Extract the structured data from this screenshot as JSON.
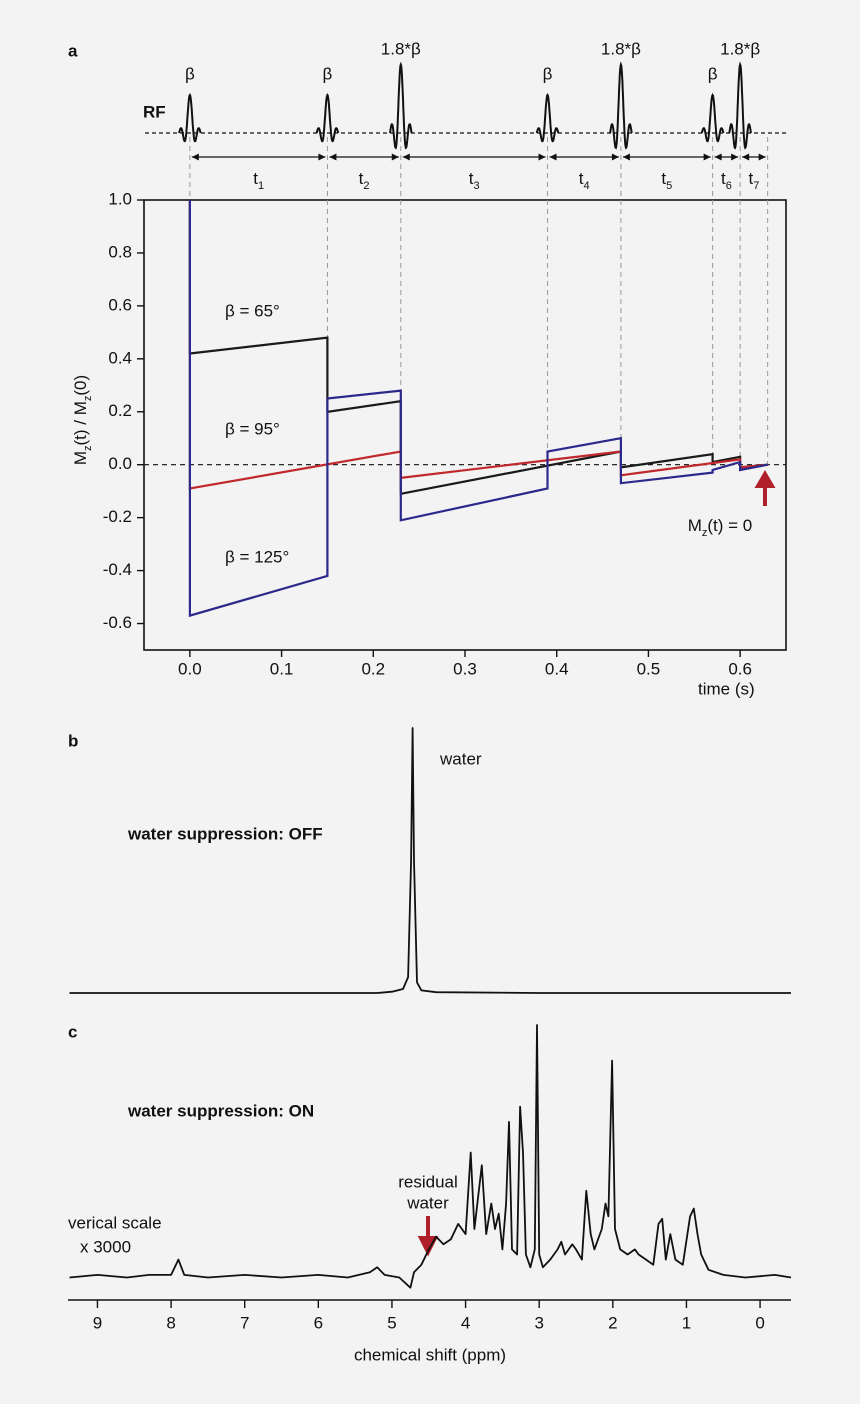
{
  "chart_data": [
    {
      "type": "line",
      "panel": "a",
      "ylabel": [
        {
          "text": "M"
        },
        {
          "text": "z",
          "sub": true
        },
        {
          "text": "(t) / M"
        },
        {
          "text": "z",
          "sub": true
        },
        {
          "text": "(0)"
        }
      ],
      "xlabel": "time (s)",
      "xlim": [
        -0.05,
        0.65
      ],
      "ylim": [
        -0.7,
        1.0
      ],
      "xticks": [
        {
          "value": 0,
          "label": "0.0"
        },
        0.1,
        0.2,
        0.3,
        0.4,
        0.5,
        0.6
      ],
      "yticks": [
        -0.6,
        -0.4,
        -0.2,
        {
          "value": 0,
          "label": "0.0"
        },
        0.2,
        0.4,
        0.6,
        0.8,
        {
          "value": 1,
          "label": "1.0"
        }
      ],
      "rf": {
        "label": "RF",
        "pulses": [
          {
            "t": 0,
            "label": "β"
          },
          {
            "t": 0.15,
            "label": "β"
          },
          {
            "t": 0.23,
            "label": "1.8*β"
          },
          {
            "t": 0.39,
            "label": "β"
          },
          {
            "t": 0.47,
            "label": "1.8*β"
          },
          {
            "t": 0.57,
            "label": "β"
          },
          {
            "t": 0.6,
            "label": "1.8*β"
          }
        ],
        "end": 0.63,
        "intervals": [
          {
            "text": "t",
            "sub": "1"
          },
          {
            "text": "t",
            "sub": "2"
          },
          {
            "text": "t",
            "sub": "3"
          },
          {
            "text": "t",
            "sub": "4"
          },
          {
            "text": "t",
            "sub": "5"
          },
          {
            "text": "t",
            "sub": "6"
          },
          {
            "text": "t",
            "sub": "7"
          }
        ]
      },
      "series": [
        {
          "name": "β = 65°",
          "color": "#1a1a1a",
          "x": [
            0,
            0,
            0.15,
            0.15,
            0.23,
            0.23,
            0.47,
            0.47,
            0.57,
            0.57,
            0.6,
            0.6,
            0.63
          ],
          "values": [
            1.0,
            0.42,
            0.48,
            0.2,
            0.24,
            -0.11,
            0.05,
            -0.01,
            0.04,
            0.01,
            0.03,
            -0.01,
            0
          ]
        },
        {
          "name": "β = 95°",
          "color": "#c0282d",
          "x": [
            0,
            0,
            0.23,
            0.23,
            0.47,
            0.47,
            0.6,
            0.6,
            0.63
          ],
          "values": [
            1.0,
            -0.09,
            0.05,
            -0.05,
            0.05,
            -0.04,
            0.02,
            -0.01,
            0
          ]
        },
        {
          "name": "β = 125°",
          "color": "#2b2a8c",
          "x": [
            0,
            0,
            0.15,
            0.15,
            0.23,
            0.23,
            0.39,
            0.39,
            0.47,
            0.47,
            0.57,
            0.57,
            0.6,
            0.6,
            0.63
          ],
          "values": [
            1.0,
            -0.57,
            -0.42,
            0.25,
            0.28,
            -0.21,
            -0.09,
            0.05,
            0.1,
            -0.07,
            -0.03,
            -0.02,
            0.01,
            -0.02,
            0
          ]
        }
      ],
      "annotation": [
        {
          "text": "M"
        },
        {
          "text": "z",
          "sub": true
        },
        {
          "text": "(t) = 0"
        }
      ]
    },
    {
      "type": "line",
      "panel": "b",
      "color": "#111111",
      "xlim": [
        9.4,
        -0.42
      ],
      "x": [
        9.38,
        6.0,
        5.2,
        5.0,
        4.85,
        4.78,
        4.74,
        4.72,
        4.7,
        4.66,
        4.6,
        4.4,
        3.0,
        -0.42
      ],
      "values": [
        0,
        0,
        0,
        0.5,
        1.5,
        6,
        50,
        100,
        50,
        4,
        1,
        0.3,
        0,
        0
      ],
      "labels": [
        "water",
        "water suppression: OFF"
      ]
    },
    {
      "type": "line",
      "panel": "c",
      "color": "#111111",
      "xlim": [
        9.4,
        -0.42
      ],
      "xlabel": "chemical shift (ppm)",
      "xticks": [
        9,
        8,
        7,
        6,
        5,
        4,
        3,
        2,
        1,
        0
      ],
      "x": [
        9.38,
        9.0,
        8.6,
        8.3,
        8.0,
        7.9,
        7.82,
        7.5,
        7.0,
        6.5,
        6.0,
        5.6,
        5.3,
        5.2,
        5.1,
        4.9,
        4.75,
        4.7,
        4.6,
        4.5,
        4.4,
        4.3,
        4.2,
        4.1,
        4.0,
        3.93,
        3.88,
        3.78,
        3.72,
        3.65,
        3.6,
        3.55,
        3.5,
        3.45,
        3.41,
        3.37,
        3.3,
        3.26,
        3.22,
        3.18,
        3.12,
        3.06,
        3.03,
        3.0,
        2.95,
        2.85,
        2.75,
        2.7,
        2.65,
        2.55,
        2.5,
        2.42,
        2.36,
        2.3,
        2.25,
        2.15,
        2.1,
        2.06,
        2.01,
        1.97,
        1.9,
        1.8,
        1.7,
        1.65,
        1.55,
        1.45,
        1.38,
        1.33,
        1.28,
        1.22,
        1.15,
        1.05,
        0.95,
        0.9,
        0.85,
        0.8,
        0.7,
        0.5,
        0.2,
        -0.2,
        -0.42
      ],
      "values": [
        1,
        2,
        1,
        2,
        2,
        8,
        2,
        1,
        2,
        1,
        2,
        1,
        3,
        5,
        2,
        1,
        -3,
        3,
        6,
        12,
        17,
        14,
        16,
        22,
        18,
        50,
        20,
        45,
        18,
        30,
        20,
        26,
        12,
        30,
        62,
        12,
        10,
        68,
        50,
        10,
        5,
        12,
        100,
        10,
        5,
        8,
        12,
        15,
        10,
        14,
        12,
        8,
        35,
        18,
        12,
        20,
        30,
        25,
        86,
        20,
        12,
        10,
        12,
        10,
        8,
        6,
        22,
        24,
        8,
        18,
        8,
        6,
        25,
        28,
        18,
        10,
        4,
        2,
        1,
        2,
        1
      ],
      "labels": [
        "water suppression: ON",
        "residual",
        "water",
        "verical scale",
        "x 3000"
      ]
    }
  ]
}
